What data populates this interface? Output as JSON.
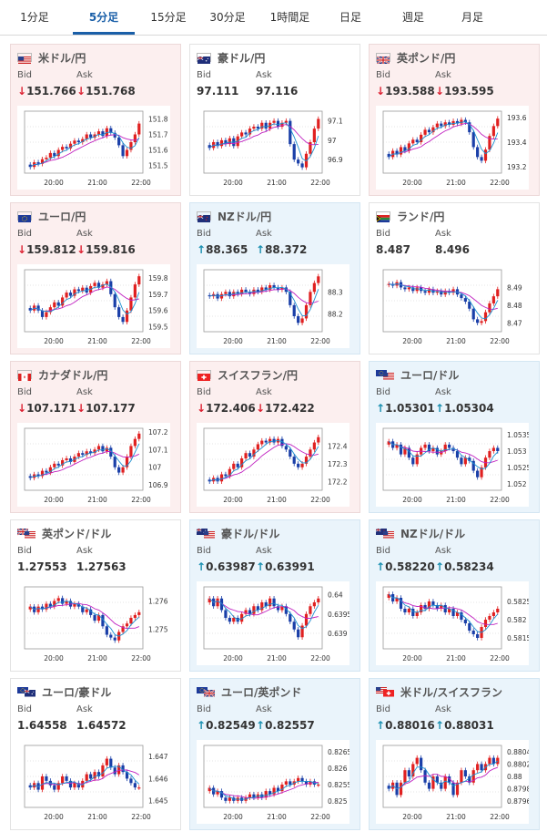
{
  "tabs": [
    "1分足",
    "5分足",
    "15分足",
    "30分足",
    "1時間足",
    "日足",
    "週足",
    "月足"
  ],
  "active_tab": 1,
  "colors": {
    "accent": "#1a5fa8",
    "up_candle": "#e02020",
    "down_candle": "#1a3fa8",
    "ma": "#c020c0",
    "ma2": "#1a8fd0",
    "down_bg": "#fcefef",
    "up_bg": "#eaf4fb"
  },
  "cards": [
    {
      "title": "米ドル/円",
      "flag": "us-flag-icon",
      "trend": "down",
      "bid_label": "Bid",
      "ask_label": "Ask",
      "bid_arrow": "↓",
      "bid": "151.766",
      "ask_arrow": "↓",
      "ask": "151.768",
      "yticks": [
        "151.8",
        "151.7",
        "151.6",
        "151.5"
      ],
      "xticks": [
        "20:00",
        "21:00",
        "22:00"
      ],
      "chart_data": {
        "type": "candlestick",
        "ylim": [
          151.45,
          151.85
        ],
        "closes": [
          151.49,
          151.52,
          151.51,
          151.54,
          151.55,
          151.58,
          151.56,
          151.6,
          151.62,
          151.61,
          151.64,
          151.66,
          151.65,
          151.67,
          151.7,
          151.68,
          151.7,
          151.72,
          151.69,
          151.74,
          151.71,
          151.68,
          151.63,
          151.56,
          151.6,
          151.65,
          151.7,
          151.77
        ]
      }
    },
    {
      "title": "豪ドル/円",
      "flag": "au-flag-icon",
      "trend": "neutral",
      "bid_label": "Bid",
      "ask_label": "Ask",
      "bid_arrow": "",
      "bid": "97.111",
      "ask_arrow": "",
      "ask": "97.116",
      "yticks": [
        "97.1",
        "97",
        "96.9"
      ],
      "xticks": [
        "20:00",
        "21:00",
        "22:00"
      ],
      "chart_data": {
        "type": "candlestick",
        "ylim": [
          96.83,
          97.15
        ],
        "closes": [
          96.96,
          96.99,
          96.97,
          97.0,
          96.98,
          97.01,
          96.97,
          97.02,
          97.04,
          97.03,
          97.06,
          97.07,
          97.06,
          97.09,
          97.06,
          97.09,
          97.1,
          97.07,
          97.09,
          97.1,
          96.98,
          96.9,
          96.88,
          96.86,
          96.93,
          96.99,
          97.06,
          97.11
        ]
      }
    },
    {
      "title": "英ポンド/円",
      "flag": "uk-flag-icon",
      "trend": "down",
      "bid_label": "Bid",
      "ask_label": "Ask",
      "bid_arrow": "↓",
      "bid": "193.588",
      "ask_arrow": "↓",
      "ask": "193.595",
      "yticks": [
        "193.6",
        "193.4",
        "193.2"
      ],
      "xticks": [
        "20:00",
        "21:00",
        "22:00"
      ],
      "chart_data": {
        "type": "candlestick",
        "ylim": [
          193.15,
          193.65
        ],
        "closes": [
          193.28,
          193.33,
          193.3,
          193.36,
          193.33,
          193.39,
          193.42,
          193.4,
          193.46,
          193.5,
          193.48,
          193.52,
          193.55,
          193.53,
          193.56,
          193.54,
          193.57,
          193.55,
          193.58,
          193.56,
          193.48,
          193.36,
          193.28,
          193.25,
          193.34,
          193.45,
          193.53,
          193.59
        ]
      }
    },
    {
      "title": "ユーロ/円",
      "flag": "eu-flag-icon",
      "trend": "down",
      "bid_label": "Bid",
      "ask_label": "Ask",
      "bid_arrow": "↓",
      "bid": "159.812",
      "ask_arrow": "↓",
      "ask": "159.816",
      "yticks": [
        "159.8",
        "159.7",
        "159.6",
        "159.5"
      ],
      "xticks": [
        "20:00",
        "21:00",
        "22:00"
      ],
      "chart_data": {
        "type": "candlestick",
        "ylim": [
          159.47,
          159.85
        ],
        "closes": [
          159.6,
          159.63,
          159.6,
          159.56,
          159.59,
          159.62,
          159.65,
          159.63,
          159.68,
          159.71,
          159.69,
          159.73,
          159.72,
          159.74,
          159.71,
          159.75,
          159.77,
          159.74,
          159.76,
          159.78,
          159.7,
          159.62,
          159.56,
          159.53,
          159.6,
          159.68,
          159.76,
          159.81
        ]
      }
    },
    {
      "title": "NZドル/円",
      "flag": "nz-flag-icon",
      "trend": "up",
      "bid_label": "Bid",
      "ask_label": "Ask",
      "bid_arrow": "↑",
      "bid": "88.365",
      "ask_arrow": "↑",
      "ask": "88.372",
      "yticks": [
        "88.3",
        "88.2"
      ],
      "xticks": [
        "20:00",
        "21:00",
        "22:00"
      ],
      "chart_data": {
        "type": "candlestick",
        "ylim": [
          88.12,
          88.4
        ],
        "closes": [
          88.28,
          88.29,
          88.27,
          88.29,
          88.3,
          88.28,
          88.3,
          88.29,
          88.31,
          88.3,
          88.29,
          88.31,
          88.3,
          88.32,
          88.31,
          88.33,
          88.32,
          88.31,
          88.32,
          88.3,
          88.24,
          88.19,
          88.16,
          88.18,
          88.24,
          88.3,
          88.34,
          88.37
        ]
      }
    },
    {
      "title": "ランド/円",
      "flag": "za-flag-icon",
      "trend": "neutral",
      "bid_label": "Bid",
      "ask_label": "Ask",
      "bid_arrow": "",
      "bid": "8.487",
      "ask_arrow": "",
      "ask": "8.496",
      "yticks": [
        "8.49",
        "8.48",
        "8.47"
      ],
      "xticks": [
        "20:00",
        "21:00",
        "22:00"
      ],
      "chart_data": {
        "type": "candlestick",
        "ylim": [
          8.465,
          8.5
        ],
        "closes": [
          8.492,
          8.491,
          8.493,
          8.49,
          8.489,
          8.49,
          8.488,
          8.49,
          8.488,
          8.487,
          8.489,
          8.487,
          8.488,
          8.486,
          8.488,
          8.487,
          8.489,
          8.486,
          8.484,
          8.482,
          8.478,
          8.472,
          8.47,
          8.471,
          8.476,
          8.481,
          8.485,
          8.489
        ]
      }
    },
    {
      "title": "カナダドル/円",
      "flag": "ca-flag-icon",
      "trend": "down",
      "bid_label": "Bid",
      "ask_label": "Ask",
      "bid_arrow": "↓",
      "bid": "107.171",
      "ask_arrow": "↓",
      "ask": "107.177",
      "yticks": [
        "107.2",
        "107.1",
        "107",
        "106.9"
      ],
      "xticks": [
        "20:00",
        "21:00",
        "22:00"
      ],
      "chart_data": {
        "type": "candlestick",
        "ylim": [
          106.87,
          107.22
        ],
        "closes": [
          106.94,
          106.96,
          106.95,
          106.98,
          106.97,
          107.0,
          107.02,
          107.01,
          107.04,
          107.05,
          107.03,
          107.06,
          107.08,
          107.07,
          107.09,
          107.08,
          107.1,
          107.12,
          107.09,
          107.11,
          107.06,
          107.0,
          106.97,
          107.0,
          107.06,
          107.12,
          107.16,
          107.19
        ]
      }
    },
    {
      "title": "スイスフラン/円",
      "flag": "ch-flag-icon",
      "trend": "down",
      "bid_label": "Bid",
      "ask_label": "Ask",
      "bid_arrow": "↓",
      "bid": "172.406",
      "ask_arrow": "↓",
      "ask": "172.422",
      "yticks": [
        "172.4",
        "172.3",
        "172.2"
      ],
      "xticks": [
        "20:00",
        "21:00",
        "22:00"
      ],
      "chart_data": {
        "type": "candlestick",
        "ylim": [
          172.15,
          172.5
        ],
        "closes": [
          172.2,
          172.22,
          172.2,
          172.24,
          172.23,
          172.27,
          172.3,
          172.28,
          172.33,
          172.36,
          172.34,
          172.38,
          172.41,
          172.43,
          172.42,
          172.44,
          172.42,
          172.44,
          172.4,
          172.38,
          172.34,
          172.3,
          172.28,
          172.3,
          172.34,
          172.38,
          172.42,
          172.45
        ]
      }
    },
    {
      "title": "ユーロ/ドル",
      "flag": "euus-flag-icon",
      "trend": "up",
      "bid_label": "Bid",
      "ask_label": "Ask",
      "bid_arrow": "↑",
      "bid": "1.05301",
      "ask_arrow": "↑",
      "ask": "1.05304",
      "yticks": [
        "1.0535",
        "1.053",
        "1.0525",
        "1.052"
      ],
      "xticks": [
        "20:00",
        "21:00",
        "22:00"
      ],
      "chart_data": {
        "type": "candlestick",
        "ylim": [
          1.0518,
          1.0537
        ],
        "closes": [
          1.0533,
          1.0531,
          1.0532,
          1.0529,
          1.0531,
          1.0528,
          1.0526,
          1.0529,
          1.0531,
          1.0532,
          1.053,
          1.0531,
          1.0529,
          1.053,
          1.0532,
          1.0531,
          1.053,
          1.0528,
          1.0526,
          1.0528,
          1.0527,
          1.0524,
          1.0522,
          1.0525,
          1.0528,
          1.053,
          1.0531,
          1.053
        ]
      }
    },
    {
      "title": "英ポンド/ドル",
      "flag": "ukus-flag-icon",
      "trend": "neutral",
      "bid_label": "Bid",
      "ask_label": "Ask",
      "bid_arrow": "",
      "bid": "1.27553",
      "ask_arrow": "",
      "ask": "1.27563",
      "yticks": [
        "1.276",
        "1.275"
      ],
      "xticks": [
        "20:00",
        "21:00",
        "22:00"
      ],
      "chart_data": {
        "type": "candlestick",
        "ylim": [
          1.2743,
          1.2765
        ],
        "closes": [
          1.2758,
          1.2756,
          1.2758,
          1.2757,
          1.2759,
          1.2758,
          1.276,
          1.2761,
          1.2759,
          1.276,
          1.2758,
          1.2759,
          1.2758,
          1.2756,
          1.2757,
          1.2755,
          1.2753,
          1.2755,
          1.2751,
          1.2748,
          1.2747,
          1.2746,
          1.2749,
          1.2751,
          1.2752,
          1.2754,
          1.2755,
          1.2756
        ]
      }
    },
    {
      "title": "豪ドル/ドル",
      "flag": "auus-flag-icon",
      "trend": "up",
      "bid_label": "Bid",
      "ask_label": "Ask",
      "bid_arrow": "↑",
      "bid": "0.63987",
      "ask_arrow": "↑",
      "ask": "0.63991",
      "yticks": [
        "0.64",
        "0.6395",
        "0.639"
      ],
      "xticks": [
        "20:00",
        "21:00",
        "22:00"
      ],
      "chart_data": {
        "type": "candlestick",
        "ylim": [
          0.6386,
          0.6402
        ],
        "closes": [
          0.6399,
          0.6397,
          0.6399,
          0.6396,
          0.6394,
          0.6393,
          0.6394,
          0.6393,
          0.6395,
          0.6396,
          0.6395,
          0.6397,
          0.6396,
          0.6398,
          0.6397,
          0.6399,
          0.6397,
          0.6396,
          0.6397,
          0.6395,
          0.6393,
          0.6391,
          0.6389,
          0.6392,
          0.6395,
          0.6397,
          0.6398,
          0.6399
        ]
      }
    },
    {
      "title": "NZドル/ドル",
      "flag": "nzus-flag-icon",
      "trend": "up",
      "bid_label": "Bid",
      "ask_label": "Ask",
      "bid_arrow": "↑",
      "bid": "0.58220",
      "ask_arrow": "↑",
      "ask": "0.58234",
      "yticks": [
        "0.5825",
        "0.582",
        "0.5815"
      ],
      "xticks": [
        "20:00",
        "21:00",
        "22:00"
      ],
      "chart_data": {
        "type": "candlestick",
        "ylim": [
          0.5812,
          0.5829
        ],
        "closes": [
          0.5827,
          0.5825,
          0.5826,
          0.5823,
          0.5822,
          0.5823,
          0.5821,
          0.5822,
          0.5824,
          0.5823,
          0.5825,
          0.5824,
          0.5823,
          0.5824,
          0.5822,
          0.5823,
          0.5821,
          0.5822,
          0.582,
          0.5819,
          0.5817,
          0.5816,
          0.5815,
          0.5818,
          0.582,
          0.5821,
          0.5822,
          0.5823
        ]
      }
    },
    {
      "title": "ユーロ/豪ドル",
      "flag": "euau-flag-icon",
      "trend": "neutral",
      "bid_label": "Bid",
      "ask_label": "Ask",
      "bid_arrow": "",
      "bid": "1.64558",
      "ask_arrow": "",
      "ask": "1.64572",
      "yticks": [
        "1.647",
        "1.646",
        "1.645"
      ],
      "xticks": [
        "20:00",
        "21:00",
        "22:00"
      ],
      "chart_data": {
        "type": "candlestick",
        "ylim": [
          1.6447,
          1.6475
        ],
        "closes": [
          1.6456,
          1.6458,
          1.6455,
          1.6461,
          1.6459,
          1.6457,
          1.6455,
          1.6458,
          1.6461,
          1.6459,
          1.6456,
          1.6458,
          1.6456,
          1.6459,
          1.6462,
          1.646,
          1.6463,
          1.6461,
          1.6466,
          1.6469,
          1.6465,
          1.6462,
          1.6466,
          1.6463,
          1.646,
          1.6458,
          1.6456,
          1.6456
        ]
      }
    },
    {
      "title": "ユーロ/英ポンド",
      "flag": "euuk-flag-icon",
      "trend": "up",
      "bid_label": "Bid",
      "ask_label": "Ask",
      "bid_arrow": "↑",
      "bid": "0.82549",
      "ask_arrow": "↑",
      "ask": "0.82557",
      "yticks": [
        "0.8265",
        "0.826",
        "0.8255",
        "0.825"
      ],
      "xticks": [
        "20:00",
        "21:00",
        "22:00"
      ],
      "chart_data": {
        "type": "candlestick",
        "ylim": [
          0.8248,
          0.8267
        ],
        "closes": [
          0.8254,
          0.8252,
          0.8253,
          0.8251,
          0.825,
          0.8251,
          0.825,
          0.8251,
          0.825,
          0.8251,
          0.8252,
          0.8251,
          0.8252,
          0.8251,
          0.8253,
          0.8252,
          0.8254,
          0.8253,
          0.8255,
          0.8256,
          0.8255,
          0.8256,
          0.8257,
          0.8256,
          0.8255,
          0.8256,
          0.8255,
          0.8255
        ]
      }
    },
    {
      "title": "米ドル/スイスフラン",
      "flag": "usch-flag-icon",
      "trend": "up",
      "bid_label": "Bid",
      "ask_label": "Ask",
      "bid_arrow": "↑",
      "bid": "0.88016",
      "ask_arrow": "↑",
      "ask": "0.88031",
      "yticks": [
        "0.8804",
        "0.8802",
        "0.88",
        "0.8798",
        "0.8796"
      ],
      "xticks": [
        "20:00",
        "21:00",
        "22:00"
      ],
      "chart_data": {
        "type": "candlestick",
        "ylim": [
          0.8795,
          0.8805
        ],
        "closes": [
          0.8798,
          0.8799,
          0.8797,
          0.8799,
          0.8801,
          0.88,
          0.8802,
          0.8803,
          0.8801,
          0.8799,
          0.8798,
          0.88,
          0.8799,
          0.8798,
          0.88,
          0.8799,
          0.8797,
          0.8799,
          0.8801,
          0.88,
          0.8799,
          0.8801,
          0.8802,
          0.8801,
          0.8802,
          0.8803,
          0.8802,
          0.8803
        ]
      }
    }
  ]
}
